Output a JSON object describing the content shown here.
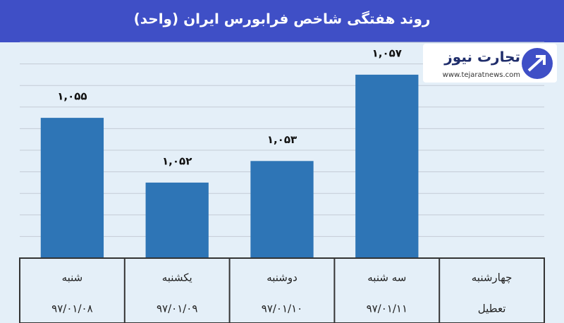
{
  "chart_data": {
    "type": "bar",
    "title": "روند هفتگی شاخص فرابورس ایران (واحد)",
    "categories": [
      "شنبه",
      "یکشنبه",
      "دوشنبه",
      "سه شنبه",
      "چهارشنبه"
    ],
    "sublabels": [
      "۹۷/۰۱/۰۸",
      "۹۷/۰۱/۰۹",
      "۹۷/۰۱/۱۰",
      "۹۷/۰۱/۱۱",
      "تعطیل"
    ],
    "values": [
      1055,
      1052,
      1053,
      1057,
      null
    ],
    "value_labels": [
      "۱,۰۵۵",
      "۱,۰۵۲",
      "۱,۰۵۳",
      "۱,۰۵۷",
      null
    ],
    "color": "#2e75b6",
    "ylim": [
      1048.5,
      1058.5
    ],
    "yticks": [
      1048.5,
      1049.5,
      1050.5,
      1051.5,
      1052.5,
      1053.5,
      1054.5,
      1055.5,
      1056.5,
      1057.5,
      1058.5
    ],
    "grid": true
  },
  "logo": {
    "name": "تجارت نیوز",
    "url": "www.tejaratnews.com"
  }
}
